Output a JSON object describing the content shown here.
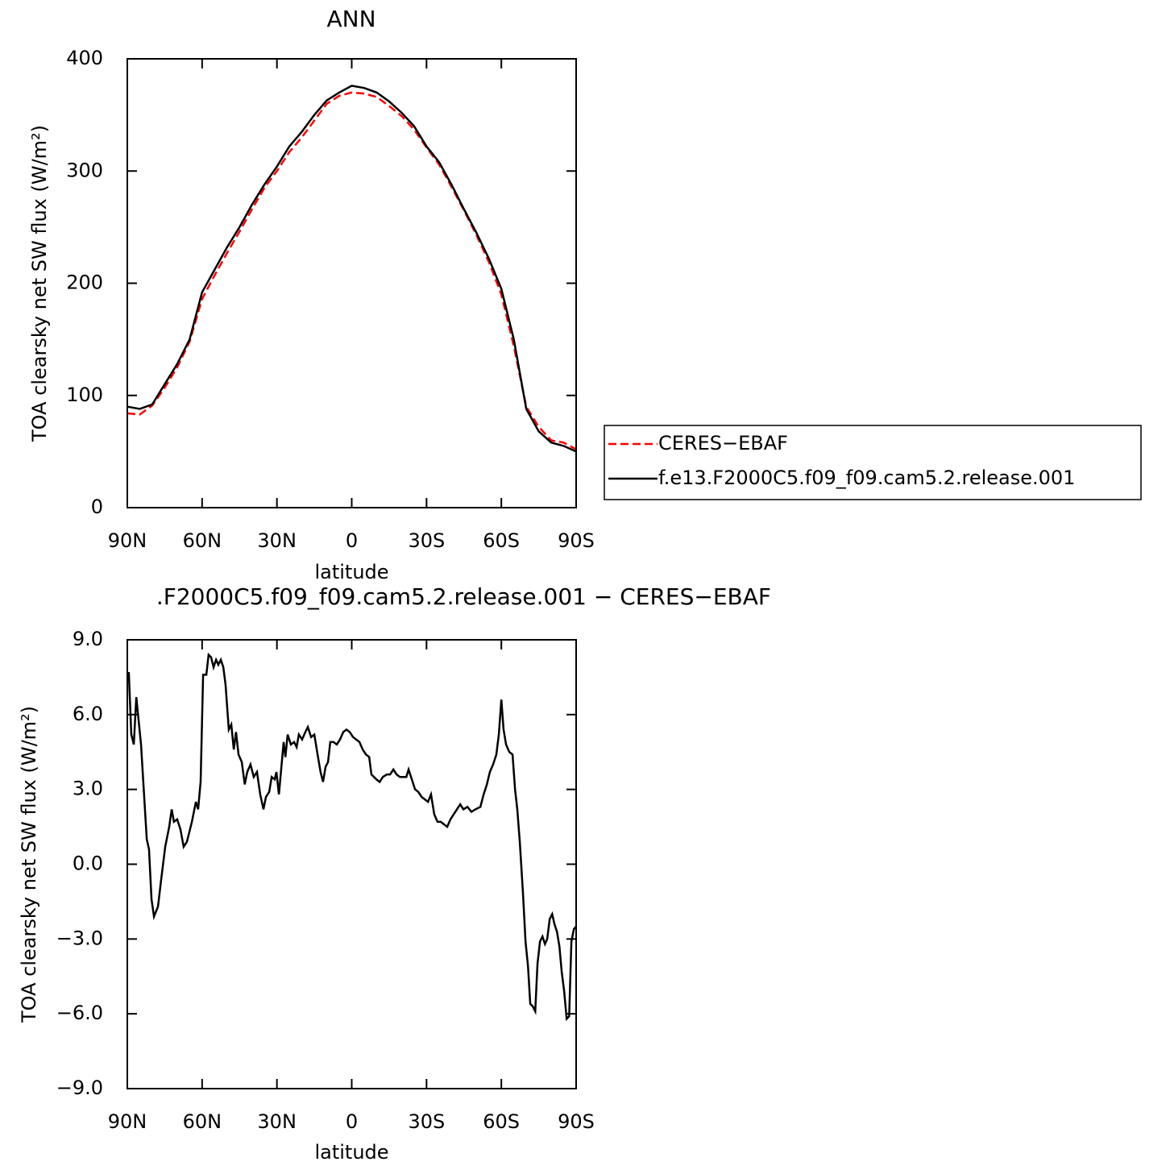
{
  "chart_data": [
    {
      "type": "line",
      "title": "ANN",
      "xlabel": "latitude",
      "ylabel": "TOA clearsky net SW flux (W/m²)",
      "x": [
        90,
        85,
        80,
        75,
        70,
        65,
        60,
        55,
        50,
        45,
        40,
        35,
        30,
        25,
        20,
        15,
        10,
        5,
        0,
        -5,
        -10,
        -15,
        -20,
        -25,
        -30,
        -35,
        -40,
        -45,
        -50,
        -55,
        -60,
        -65,
        -70,
        -75,
        -80,
        -85,
        -90
      ],
      "series": [
        {
          "name": "CERES−EBAF",
          "color": "#ff0000",
          "line_style": "dashed",
          "values": [
            84,
            83,
            91,
            107,
            125,
            148,
            186,
            207,
            227,
            246,
            266,
            285,
            300,
            317,
            330,
            345,
            360,
            367,
            370,
            369,
            366,
            358,
            349,
            337,
            321,
            306,
            286,
            265,
            243,
            219,
            190,
            144,
            90,
            72,
            60,
            58,
            52
          ]
        },
        {
          "name": "f.e13.F2000C5.f09_f09.cam5.2.release.001",
          "color": "#000000",
          "line_style": "solid",
          "values": [
            90,
            88,
            92,
            110,
            128,
            150,
            192,
            212,
            232,
            250,
            270,
            288,
            304,
            322,
            335,
            350,
            363,
            370,
            376,
            374,
            370,
            362,
            352,
            340,
            322,
            308,
            288,
            266,
            245,
            222,
            195,
            150,
            88,
            68,
            58,
            55,
            50
          ]
        }
      ],
      "xlim": [
        90,
        -90
      ],
      "xticks": [
        {
          "value": 90,
          "label": "90N"
        },
        {
          "value": 60,
          "label": "60N"
        },
        {
          "value": 30,
          "label": "30N"
        },
        0,
        {
          "value": -30,
          "label": "30S"
        },
        {
          "value": -60,
          "label": "60S"
        },
        {
          "value": -90,
          "label": "90S"
        }
      ],
      "ylim": [
        0,
        400
      ],
      "yticks": [
        0,
        100,
        200,
        300,
        400
      ],
      "legend": "right"
    },
    {
      "type": "line",
      "title": ".F2000C5.f09_f09.cam5.2.release.001 − CERES−EBAF",
      "xlabel": "latitude",
      "ylabel": "TOA clearsky net SW flux (W/m²)",
      "x": [
        90,
        89.4,
        88.4,
        87.4,
        86.4,
        84.5,
        82.2,
        81.3,
        80.3,
        79.3,
        77.7,
        76.4,
        74.8,
        73.2,
        72.2,
        71.3,
        70.0,
        68.7,
        67.4,
        66.1,
        64.1,
        62.5,
        61.6,
        60.6,
        59.6,
        58.3,
        57.4,
        56.4,
        55.4,
        54.4,
        53.5,
        52.5,
        51.5,
        50.6,
        49.3,
        48.3,
        47.3,
        46.4,
        45.4,
        44.1,
        42.9,
        41.9,
        40.6,
        39.3,
        38.0,
        36.7,
        35.4,
        34.4,
        33.1,
        32.1,
        30.9,
        30.2,
        29.2,
        28.3,
        27.3,
        26.6,
        25.7,
        24.4,
        23.1,
        22.1,
        21.2,
        19.9,
        18.6,
        17.6,
        16.3,
        15.0,
        13.7,
        12.5,
        11.5,
        10.5,
        9.5,
        8.6,
        7.3,
        6.0,
        4.7,
        3.4,
        2.1,
        0.8,
        -0.5,
        -1.8,
        -3.1,
        -4.4,
        -5.7,
        -7.0,
        -7.9,
        -8.9,
        -9.9,
        -11.2,
        -12.5,
        -14.1,
        -15.4,
        -16.7,
        -18.0,
        -19.3,
        -20.6,
        -21.9,
        -22.8,
        -24.1,
        -25.4,
        -26.7,
        -28.0,
        -29.3,
        -30.6,
        -31.8,
        -33.1,
        -34.4,
        -35.7,
        -37.0,
        -38.3,
        -39.6,
        -40.9,
        -42.2,
        -43.5,
        -44.8,
        -46.4,
        -48.0,
        -49.6,
        -51.6,
        -52.9,
        -54.2,
        -55.4,
        -56.7,
        -58.0,
        -59.0,
        -60.0,
        -60.9,
        -61.9,
        -63.2,
        -64.5,
        -65.5,
        -66.4,
        -67.4,
        -68.7,
        -69.7,
        -70.7,
        -71.6,
        -72.6,
        -73.6,
        -74.5,
        -75.5,
        -76.5,
        -77.5,
        -78.4,
        -79.4,
        -80.4,
        -81.3,
        -82.3,
        -83.3,
        -84.2,
        -85.2,
        -86.2,
        -87.2,
        -88.1,
        -89.1,
        -90
      ],
      "series": [
        {
          "color": "#000000",
          "line_style": "solid",
          "values": [
            7.5,
            7.7,
            5.2,
            4.8,
            6.7,
            4.8,
            1.0,
            0.6,
            -1.4,
            -2.1,
            -1.7,
            -0.6,
            0.7,
            1.5,
            2.2,
            1.7,
            1.8,
            1.4,
            0.7,
            0.9,
            1.7,
            2.5,
            2.2,
            3.3,
            7.6,
            7.6,
            8.4,
            8.3,
            7.9,
            8.2,
            8.0,
            8.2,
            7.9,
            7.2,
            5.4,
            5.6,
            4.6,
            5.3,
            4.4,
            4.1,
            3.2,
            3.7,
            4.0,
            3.5,
            3.7,
            2.8,
            2.2,
            2.7,
            2.9,
            3.5,
            3.4,
            3.7,
            2.8,
            3.8,
            4.9,
            4.3,
            5.2,
            4.8,
            4.9,
            4.7,
            5.2,
            5.0,
            5.3,
            5.5,
            5.1,
            5.2,
            4.4,
            3.7,
            3.3,
            3.9,
            4.1,
            4.9,
            4.9,
            4.8,
            5.0,
            5.3,
            5.4,
            5.3,
            5.1,
            5.0,
            4.9,
            4.6,
            4.4,
            4.3,
            3.6,
            3.5,
            3.4,
            3.3,
            3.5,
            3.6,
            3.6,
            3.8,
            3.6,
            3.5,
            3.5,
            3.5,
            3.8,
            3.4,
            3.0,
            2.9,
            2.7,
            2.6,
            2.5,
            2.8,
            2.0,
            1.7,
            1.7,
            1.6,
            1.5,
            1.8,
            2.0,
            2.2,
            2.4,
            2.2,
            2.3,
            2.1,
            2.2,
            2.3,
            2.8,
            3.2,
            3.7,
            4.0,
            4.4,
            5.2,
            6.6,
            5.4,
            4.8,
            4.5,
            4.4,
            3.0,
            2.2,
            0.9,
            -1.2,
            -3.1,
            -4.1,
            -5.6,
            -5.7,
            -5.9,
            -4.0,
            -3.1,
            -2.9,
            -3.2,
            -3.0,
            -2.2,
            -2.0,
            -2.4,
            -2.7,
            -3.3,
            -4.3,
            -5.1,
            -6.2,
            -6.1,
            -3.1,
            -2.6,
            -2.5
          ]
        }
      ],
      "xlim": [
        90,
        -90
      ],
      "xticks": [
        {
          "value": 90,
          "label": "90N"
        },
        {
          "value": 60,
          "label": "60N"
        },
        {
          "value": 30,
          "label": "30N"
        },
        0,
        {
          "value": -30,
          "label": "30S"
        },
        {
          "value": -60,
          "label": "60S"
        },
        {
          "value": -90,
          "label": "90S"
        }
      ],
      "ylim": [
        -9,
        9
      ],
      "yticks": [
        {
          "value": -9,
          "label": "−9.0"
        },
        {
          "value": -6,
          "label": "−6.0"
        },
        {
          "value": -3,
          "label": "−3.0"
        },
        {
          "value": 0,
          "label": "0.0"
        },
        {
          "value": 3,
          "label": "3.0"
        },
        {
          "value": 6,
          "label": "6.0"
        },
        {
          "value": 9,
          "label": "9.0"
        }
      ]
    }
  ]
}
